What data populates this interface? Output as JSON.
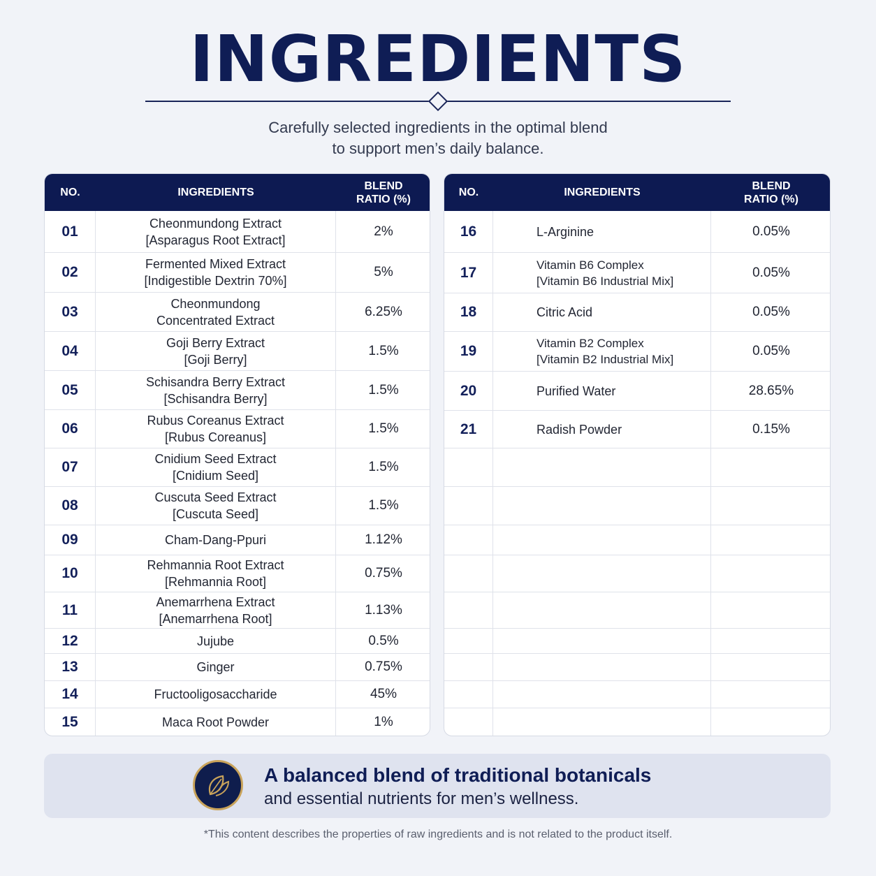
{
  "header": {
    "title": "INGREDIENTS",
    "subtitle_line1": "Carefully selected ingredients in the optimal blend",
    "subtitle_line2": "to support men’s daily balance."
  },
  "table": {
    "col_no": "NO.",
    "col_ingredients": "INGREDIENTS",
    "col_ratio_line1": "BLEND",
    "col_ratio_line2": "RATIO (%)"
  },
  "left_rows": [
    {
      "no": "01",
      "line1": "Cheonmundong Extract",
      "line2": "[Asparagus Root Extract]",
      "ratio": "2%"
    },
    {
      "no": "02",
      "line1": "Fermented Mixed Extract",
      "line2": "[Indigestible Dextrin 70%]",
      "ratio": "5%"
    },
    {
      "no": "03",
      "line1": "Cheonmundong",
      "line2": "Concentrated Extract",
      "ratio": "6.25%"
    },
    {
      "no": "04",
      "line1": "Goji Berry Extract",
      "line2": "[Goji Berry]",
      "ratio": "1.5%"
    },
    {
      "no": "05",
      "line1": "Schisandra Berry Extract",
      "line2": "[Schisandra Berry]",
      "ratio": "1.5%"
    },
    {
      "no": "06",
      "line1": "Rubus Coreanus Extract",
      "line2": "[Rubus Coreanus]",
      "ratio": "1.5%"
    },
    {
      "no": "07",
      "line1": "Cnidium Seed Extract",
      "line2": "[Cnidium Seed]",
      "ratio": "1.5%"
    },
    {
      "no": "08",
      "line1": "Cuscuta Seed Extract",
      "line2": "[Cuscuta Seed]",
      "ratio": "1.5%"
    },
    {
      "no": "09",
      "line1": "Cham-Dang-Ppuri",
      "line2": "",
      "ratio": "1.12%"
    },
    {
      "no": "10",
      "line1": "Rehmannia Root Extract",
      "line2": "[Rehmannia Root]",
      "ratio": "0.75%"
    },
    {
      "no": "11",
      "line1": "Anemarrhena Extract",
      "line2": "[Anemarrhena Root]",
      "ratio": "1.13%"
    },
    {
      "no": "12",
      "line1": "Jujube",
      "line2": "",
      "ratio": "0.5%"
    },
    {
      "no": "13",
      "line1": "Ginger",
      "line2": "",
      "ratio": "0.75%"
    },
    {
      "no": "14",
      "line1": "Fructooligosaccharide",
      "line2": "",
      "ratio": "45%"
    },
    {
      "no": "15",
      "line1": "Maca Root Powder",
      "line2": "",
      "ratio": "1%"
    }
  ],
  "right_rows": [
    {
      "no": "16",
      "line1": "L-Arginine",
      "line2": "",
      "ratio": "0.05%"
    },
    {
      "no": "17",
      "line1": "Vitamin B6 Complex",
      "line2": "[Vitamin B6 Industrial Mix]",
      "ratio": "0.05%"
    },
    {
      "no": "18",
      "line1": "Citric Acid",
      "line2": "",
      "ratio": "0.05%"
    },
    {
      "no": "19",
      "line1": "Vitamin B2 Complex",
      "line2": "[Vitamin B2 Industrial Mix]",
      "ratio": "0.05%"
    },
    {
      "no": "20",
      "line1": "Purified Water",
      "line2": "",
      "ratio": "28.65%"
    },
    {
      "no": "21",
      "line1": "Radish Powder",
      "line2": "",
      "ratio": "0.15%"
    }
  ],
  "banner": {
    "icon": "leaf-icon",
    "title": "A balanced blend of traditional botanicals",
    "subtitle": "and essential nutrients for men’s wellness."
  },
  "footnote": "*This content describes the properties of raw ingredients and is not related to the product itself.",
  "colors": {
    "navy": "#0d1a52",
    "gold": "#c9a35a",
    "background": "#f1f3f8"
  }
}
